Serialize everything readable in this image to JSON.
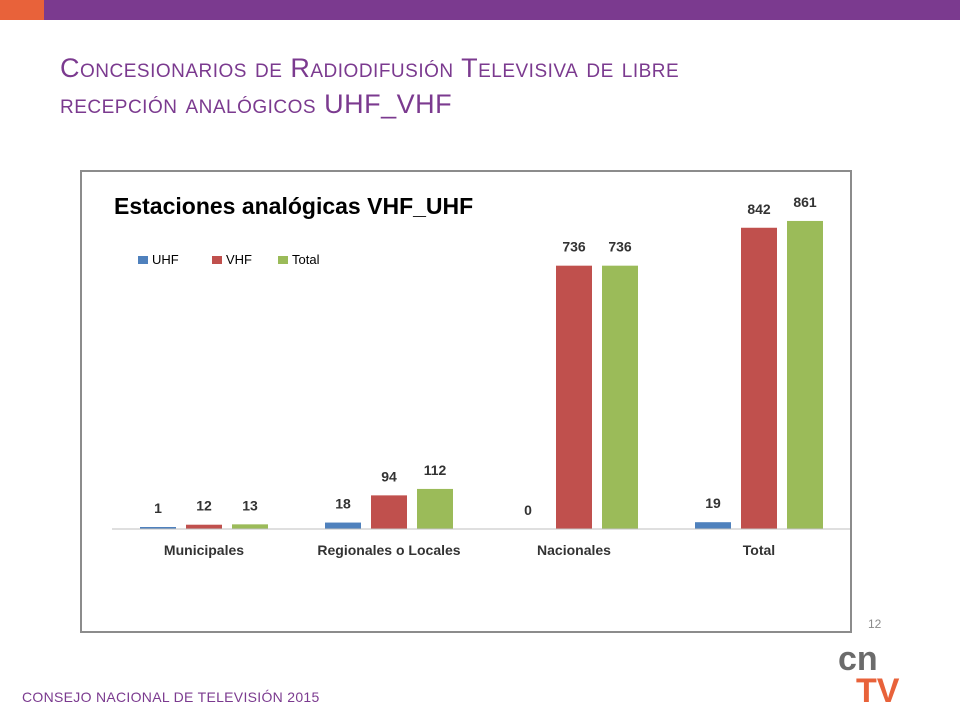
{
  "slide": {
    "title_line1": "Concesionarios de Radiodifusión Televisiva de libre",
    "title_line2": "recepción analógicos UHF_VHF",
    "page_number": "12",
    "footer": "CONSEJO NACIONAL DE TELEVISIÓN 2015",
    "logo_text_top": "cn",
    "logo_text_bottom": "TV"
  },
  "colors": {
    "top_bar": "#7b3a8f",
    "top_accent": "#e8623a",
    "title": "#7b3a8f",
    "logo_gray": "#6b6b6b",
    "logo_orange": "#e8623a"
  },
  "chart_data": {
    "type": "bar",
    "title": "Estaciones analógicas VHF_UHF",
    "categories": [
      "Municipales",
      "Regionales o Locales",
      "Nacionales",
      "Total"
    ],
    "series": [
      {
        "name": "UHF",
        "color": "#4f81bd",
        "values": [
          1,
          18,
          0,
          19
        ]
      },
      {
        "name": "VHF",
        "color": "#c0504d",
        "values": [
          12,
          94,
          736,
          842
        ]
      },
      {
        "name": "Total",
        "color": "#9bbb59",
        "values": [
          13,
          112,
          736,
          861
        ]
      }
    ],
    "ylim": [
      0,
      1000
    ],
    "grid": false,
    "legend": "top-left",
    "xlabel": "",
    "ylabel": ""
  }
}
